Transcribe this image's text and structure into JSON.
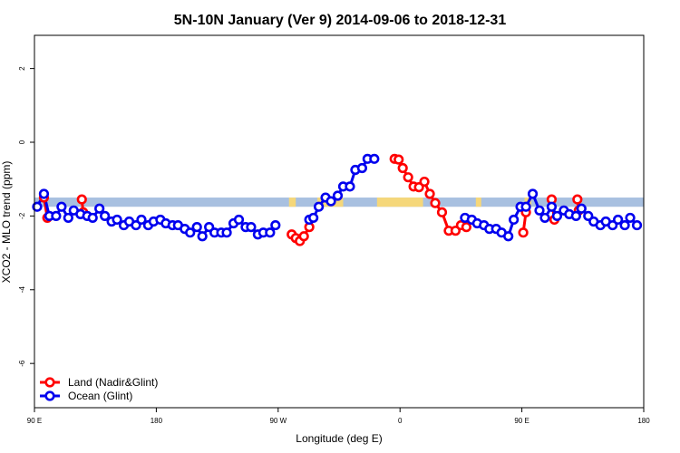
{
  "chart_data": {
    "type": "line",
    "title": "5N-10N January (Ver 9)   2014-09-06 to 2018-12-31",
    "xlabel": "Longitude (deg E)",
    "ylabel": "XCO2 - MLO trend (ppm)",
    "xlim": [
      90,
      540
    ],
    "ylim": [
      -7.2,
      2.9
    ],
    "x_ticks": [
      {
        "value": 90,
        "label": "90 E"
      },
      {
        "value": 180,
        "label": "180"
      },
      {
        "value": 270,
        "label": "90 W"
      },
      {
        "value": 360,
        "label": "0"
      },
      {
        "value": 450,
        "label": "90 E"
      },
      {
        "value": 540,
        "label": "180"
      }
    ],
    "y_ticks": [
      {
        "value": 2,
        "label": "2"
      },
      {
        "value": 0,
        "label": "0"
      },
      {
        "value": -2,
        "label": "-2"
      },
      {
        "value": -4,
        "label": "-4"
      },
      {
        "value": -6,
        "label": "-6"
      }
    ],
    "colors": {
      "land": "#ff0000",
      "ocean": "#0000ee",
      "band_ocean": "#a8c0e0",
      "band_land": "#f5d77a"
    },
    "legend": {
      "position": "bottom-left",
      "entries": [
        {
          "label": "Land (Nadir&Glint)",
          "color": "#ff0000"
        },
        {
          "label": "Ocean (Glint)",
          "color": "#0000ee"
        }
      ]
    },
    "latitude_band": {
      "y_range": [
        -1.75,
        -1.5
      ],
      "land_x_ranges": [
        [
          278,
          283
        ],
        [
          299,
          318
        ],
        [
          343,
          377
        ],
        [
          416,
          420
        ],
        [
          452,
          457
        ]
      ]
    },
    "series": [
      {
        "name": "Land (Nadir&Glint)",
        "color": "#ff0000",
        "segments": [
          [
            [
              97,
              -1.5
            ],
            [
              99.5,
              -2.05
            ]
          ],
          [
            [
              125,
              -1.55
            ],
            [
              126,
              -1.9
            ]
          ],
          [
            [
              280,
              -2.5
            ],
            [
              283,
              -2.6
            ],
            [
              286,
              -2.68
            ],
            [
              289,
              -2.55
            ],
            [
              293,
              -2.3
            ]
          ],
          [
            [
              356,
              -0.45
            ],
            [
              359,
              -0.47
            ],
            [
              362,
              -0.7
            ],
            [
              366,
              -0.95
            ],
            [
              370,
              -1.2
            ],
            [
              374,
              -1.22
            ],
            [
              378,
              -1.07
            ],
            [
              382,
              -1.4
            ],
            [
              386,
              -1.65
            ],
            [
              391,
              -1.9
            ],
            [
              396,
              -2.4
            ],
            [
              401,
              -2.4
            ],
            [
              405,
              -2.25
            ],
            [
              409,
              -2.3
            ]
          ],
          [
            [
              451,
              -2.45
            ],
            [
              453,
              -1.9
            ]
          ],
          [
            [
              472,
              -1.55
            ],
            [
              474,
              -2.1
            ]
          ],
          [
            [
              491,
              -1.55
            ],
            [
              492,
              -1.85
            ]
          ]
        ]
      },
      {
        "name": "Ocean (Glint)",
        "color": "#0000ee",
        "points": [
          [
            92,
            -1.75
          ],
          [
            97,
            -1.4
          ],
          [
            101,
            -2.0
          ],
          [
            106,
            -2.0
          ],
          [
            110,
            -1.75
          ],
          [
            115,
            -2.05
          ],
          [
            119,
            -1.85
          ],
          [
            124,
            -1.95
          ],
          [
            129,
            -2.0
          ],
          [
            133,
            -2.05
          ],
          [
            138,
            -1.8
          ],
          [
            142,
            -2.0
          ],
          [
            147,
            -2.15
          ],
          [
            151,
            -2.1
          ],
          [
            156,
            -2.25
          ],
          [
            160,
            -2.15
          ],
          [
            165,
            -2.25
          ],
          [
            169,
            -2.1
          ],
          [
            174,
            -2.25
          ],
          [
            178,
            -2.15
          ],
          [
            183,
            -2.1
          ],
          [
            187,
            -2.2
          ],
          [
            192,
            -2.25
          ],
          [
            196,
            -2.25
          ],
          [
            201,
            -2.35
          ],
          [
            205,
            -2.45
          ],
          [
            210,
            -2.3
          ],
          [
            214,
            -2.55
          ],
          [
            219,
            -2.3
          ],
          [
            223,
            -2.45
          ],
          [
            228,
            -2.45
          ],
          [
            232,
            -2.45
          ],
          [
            237,
            -2.2
          ],
          [
            241,
            -2.1
          ],
          [
            246,
            -2.3
          ],
          [
            250,
            -2.3
          ],
          [
            255,
            -2.5
          ],
          [
            259,
            -2.45
          ],
          [
            264,
            -2.45
          ],
          [
            268,
            -2.25
          ],
          [
            293,
            -2.1
          ],
          [
            296,
            -2.05
          ],
          [
            300,
            -1.75
          ],
          [
            305,
            -1.5
          ],
          [
            309,
            -1.6
          ],
          [
            314,
            -1.45
          ],
          [
            318,
            -1.2
          ],
          [
            323,
            -1.2
          ],
          [
            327,
            -0.75
          ],
          [
            332,
            -0.7
          ],
          [
            336,
            -0.45
          ],
          [
            341,
            -0.45
          ],
          [
            408,
            -2.05
          ],
          [
            413,
            -2.1
          ],
          [
            417,
            -2.2
          ],
          [
            422,
            -2.25
          ],
          [
            426,
            -2.35
          ],
          [
            431,
            -2.35
          ],
          [
            435,
            -2.45
          ],
          [
            440,
            -2.55
          ],
          [
            444,
            -2.1
          ],
          [
            449,
            -1.75
          ],
          [
            453,
            -1.75
          ],
          [
            458,
            -1.4
          ],
          [
            463,
            -1.85
          ],
          [
            467,
            -2.05
          ],
          [
            472,
            -1.75
          ],
          [
            476,
            -2.0
          ],
          [
            481,
            -1.85
          ],
          [
            485,
            -1.95
          ],
          [
            490,
            -2.0
          ],
          [
            494,
            -1.8
          ],
          [
            499,
            -2.0
          ],
          [
            503,
            -2.15
          ],
          [
            508,
            -2.25
          ],
          [
            512,
            -2.15
          ],
          [
            517,
            -2.25
          ],
          [
            521,
            -2.1
          ],
          [
            526,
            -2.25
          ],
          [
            530,
            -2.05
          ],
          [
            535,
            -2.25
          ]
        ]
      }
    ]
  }
}
